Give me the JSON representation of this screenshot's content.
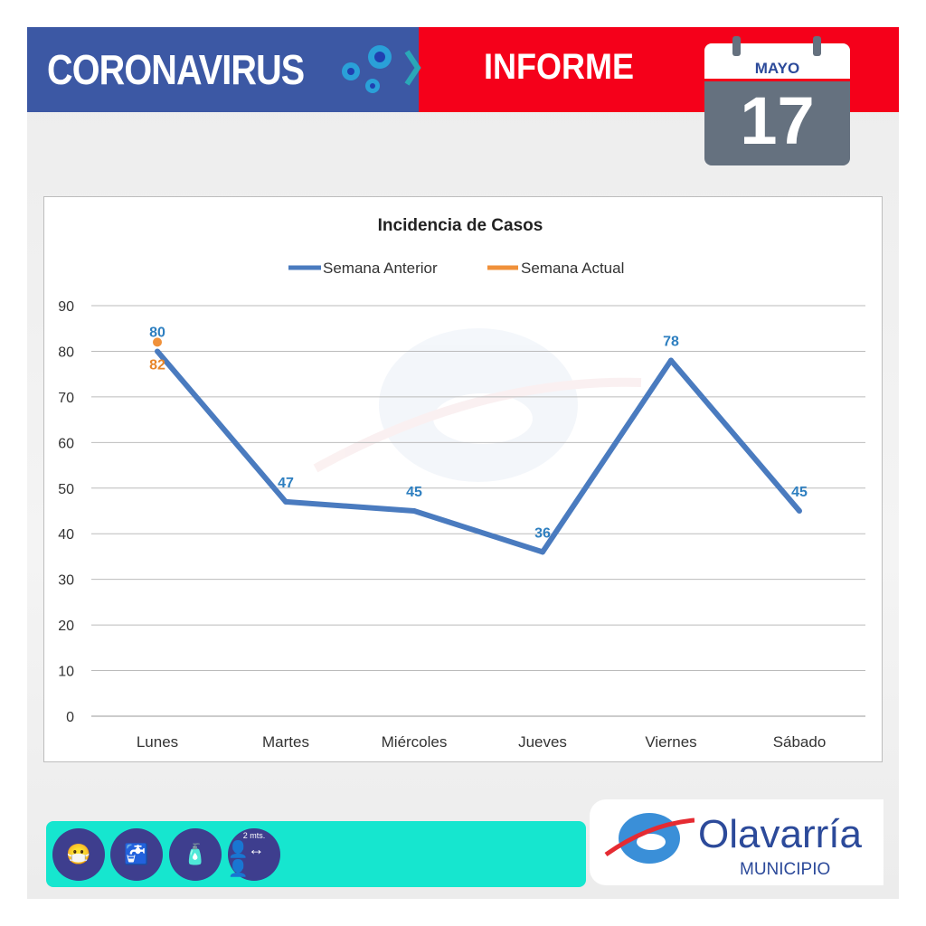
{
  "header": {
    "title": "CORONAVIRUS",
    "subtitle": "INFORME",
    "calendar": {
      "month": "MAYO",
      "day": "17"
    }
  },
  "footer": {
    "icons": [
      "mask-icon",
      "handwash-icon",
      "sanitizer-icon",
      "distance-icon"
    ],
    "distance_label": "2 mts.",
    "logo_name": "Olavarría",
    "logo_sub": "MUNICIPIO"
  },
  "watermark": {
    "name": "Olavarría",
    "sub": "MUNICIPIO"
  },
  "colors": {
    "blue": "#3c58a4",
    "red": "#f5001a",
    "series_prev": "#4a7bbf",
    "series_curr": "#f0913a",
    "teal": "#16e6cf"
  },
  "chart_data": {
    "type": "line",
    "title": "Incidencia de Casos",
    "categories": [
      "Lunes",
      "Martes",
      "Miércoles",
      "Jueves",
      "Viernes",
      "Sábado"
    ],
    "series": [
      {
        "name": "Semana Anterior",
        "values": [
          80,
          47,
          45,
          36,
          78,
          45
        ]
      },
      {
        "name": "Semana Actual",
        "values": [
          82,
          null,
          null,
          null,
          null,
          null
        ]
      }
    ],
    "ylim": [
      0,
      90
    ],
    "yticks": [
      0,
      10,
      20,
      30,
      40,
      50,
      60,
      70,
      80,
      90
    ],
    "grid": true,
    "legend": "top"
  }
}
